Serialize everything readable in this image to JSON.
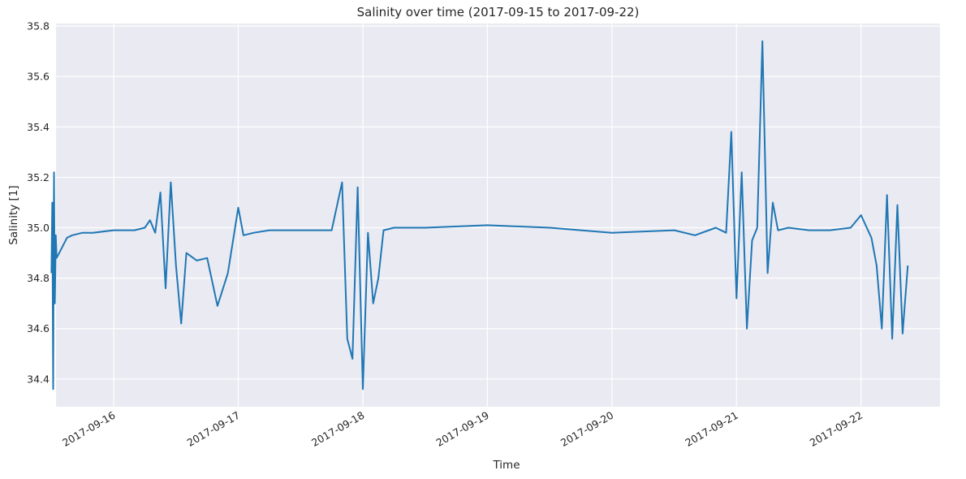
{
  "chart_data": {
    "type": "line",
    "title": "Salinity over time (2017-09-15 to 2017-09-22)",
    "xlabel": "Time",
    "ylabel": "Salinity [1]",
    "x_ticks": [
      "2017-09-16",
      "2017-09-17",
      "2017-09-18",
      "2017-09-19",
      "2017-09-20",
      "2017-09-21",
      "2017-09-22"
    ],
    "y_ticks": [
      "34.4",
      "34.6",
      "34.8",
      "35.0",
      "35.2",
      "35.4",
      "35.6",
      "35.8"
    ],
    "xlim": [
      "2017-09-15 12:53",
      "2017-09-22 15:13"
    ],
    "ylim": [
      34.29,
      35.81
    ],
    "grid": true,
    "line_color": "#1f77b4",
    "background_color": "#eaeaf2",
    "series": [
      {
        "x": [
          "2017-09-15 12:00",
          "2017-09-15 12:10",
          "2017-09-15 12:20",
          "2017-09-15 12:30",
          "2017-09-15 12:40",
          "2017-09-15 12:50",
          "2017-09-15 13:00",
          "2017-09-15 14:00",
          "2017-09-15 15:00",
          "2017-09-15 16:00",
          "2017-09-15 18:00",
          "2017-09-15 20:00",
          "2017-09-16 00:00",
          "2017-09-16 04:00",
          "2017-09-16 06:00",
          "2017-09-16 07:00",
          "2017-09-16 08:00",
          "2017-09-16 09:00",
          "2017-09-16 10:00",
          "2017-09-16 11:00",
          "2017-09-16 12:00",
          "2017-09-16 13:00",
          "2017-09-16 14:00",
          "2017-09-16 16:00",
          "2017-09-16 18:00",
          "2017-09-16 20:00",
          "2017-09-16 22:00",
          "2017-09-17 00:00",
          "2017-09-17 01:00",
          "2017-09-17 03:00",
          "2017-09-17 06:00",
          "2017-09-17 12:00",
          "2017-09-17 18:00",
          "2017-09-17 20:00",
          "2017-09-17 21:00",
          "2017-09-17 22:00",
          "2017-09-17 23:00",
          "2017-09-18 00:00",
          "2017-09-18 01:00",
          "2017-09-18 02:00",
          "2017-09-18 03:00",
          "2017-09-18 04:00",
          "2017-09-18 06:00",
          "2017-09-18 12:00",
          "2017-09-19 00:00",
          "2017-09-19 12:00",
          "2017-09-20 00:00",
          "2017-09-20 12:00",
          "2017-09-20 16:00",
          "2017-09-20 20:00",
          "2017-09-20 22:00",
          "2017-09-20 23:00",
          "2017-09-21 00:00",
          "2017-09-21 01:00",
          "2017-09-21 02:00",
          "2017-09-21 03:00",
          "2017-09-21 04:00",
          "2017-09-21 05:00",
          "2017-09-21 06:00",
          "2017-09-21 07:00",
          "2017-09-21 08:00",
          "2017-09-21 10:00",
          "2017-09-21 14:00",
          "2017-09-21 18:00",
          "2017-09-21 22:00",
          "2017-09-22 00:00",
          "2017-09-22 02:00",
          "2017-09-22 03:00",
          "2017-09-22 04:00",
          "2017-09-22 05:00",
          "2017-09-22 06:00",
          "2017-09-22 07:00",
          "2017-09-22 08:00",
          "2017-09-22 09:00"
        ],
        "values": [
          34.82,
          35.1,
          34.36,
          35.22,
          34.7,
          34.97,
          34.88,
          34.92,
          34.96,
          34.97,
          34.98,
          34.98,
          34.99,
          34.99,
          35.0,
          35.03,
          34.98,
          35.14,
          34.76,
          35.18,
          34.85,
          34.62,
          34.9,
          34.87,
          34.88,
          34.69,
          34.82,
          35.08,
          34.97,
          34.98,
          34.99,
          34.99,
          34.99,
          35.18,
          34.56,
          34.48,
          35.16,
          34.36,
          34.98,
          34.7,
          34.8,
          34.99,
          35.0,
          35.0,
          35.01,
          35.0,
          34.98,
          34.99,
          34.97,
          35.0,
          34.98,
          35.38,
          34.72,
          35.22,
          34.6,
          34.95,
          35.0,
          35.74,
          34.82,
          35.1,
          34.99,
          35.0,
          34.99,
          34.99,
          35.0,
          35.05,
          34.96,
          34.85,
          34.6,
          35.13,
          34.56,
          35.09,
          34.58,
          34.85
        ]
      }
    ]
  }
}
